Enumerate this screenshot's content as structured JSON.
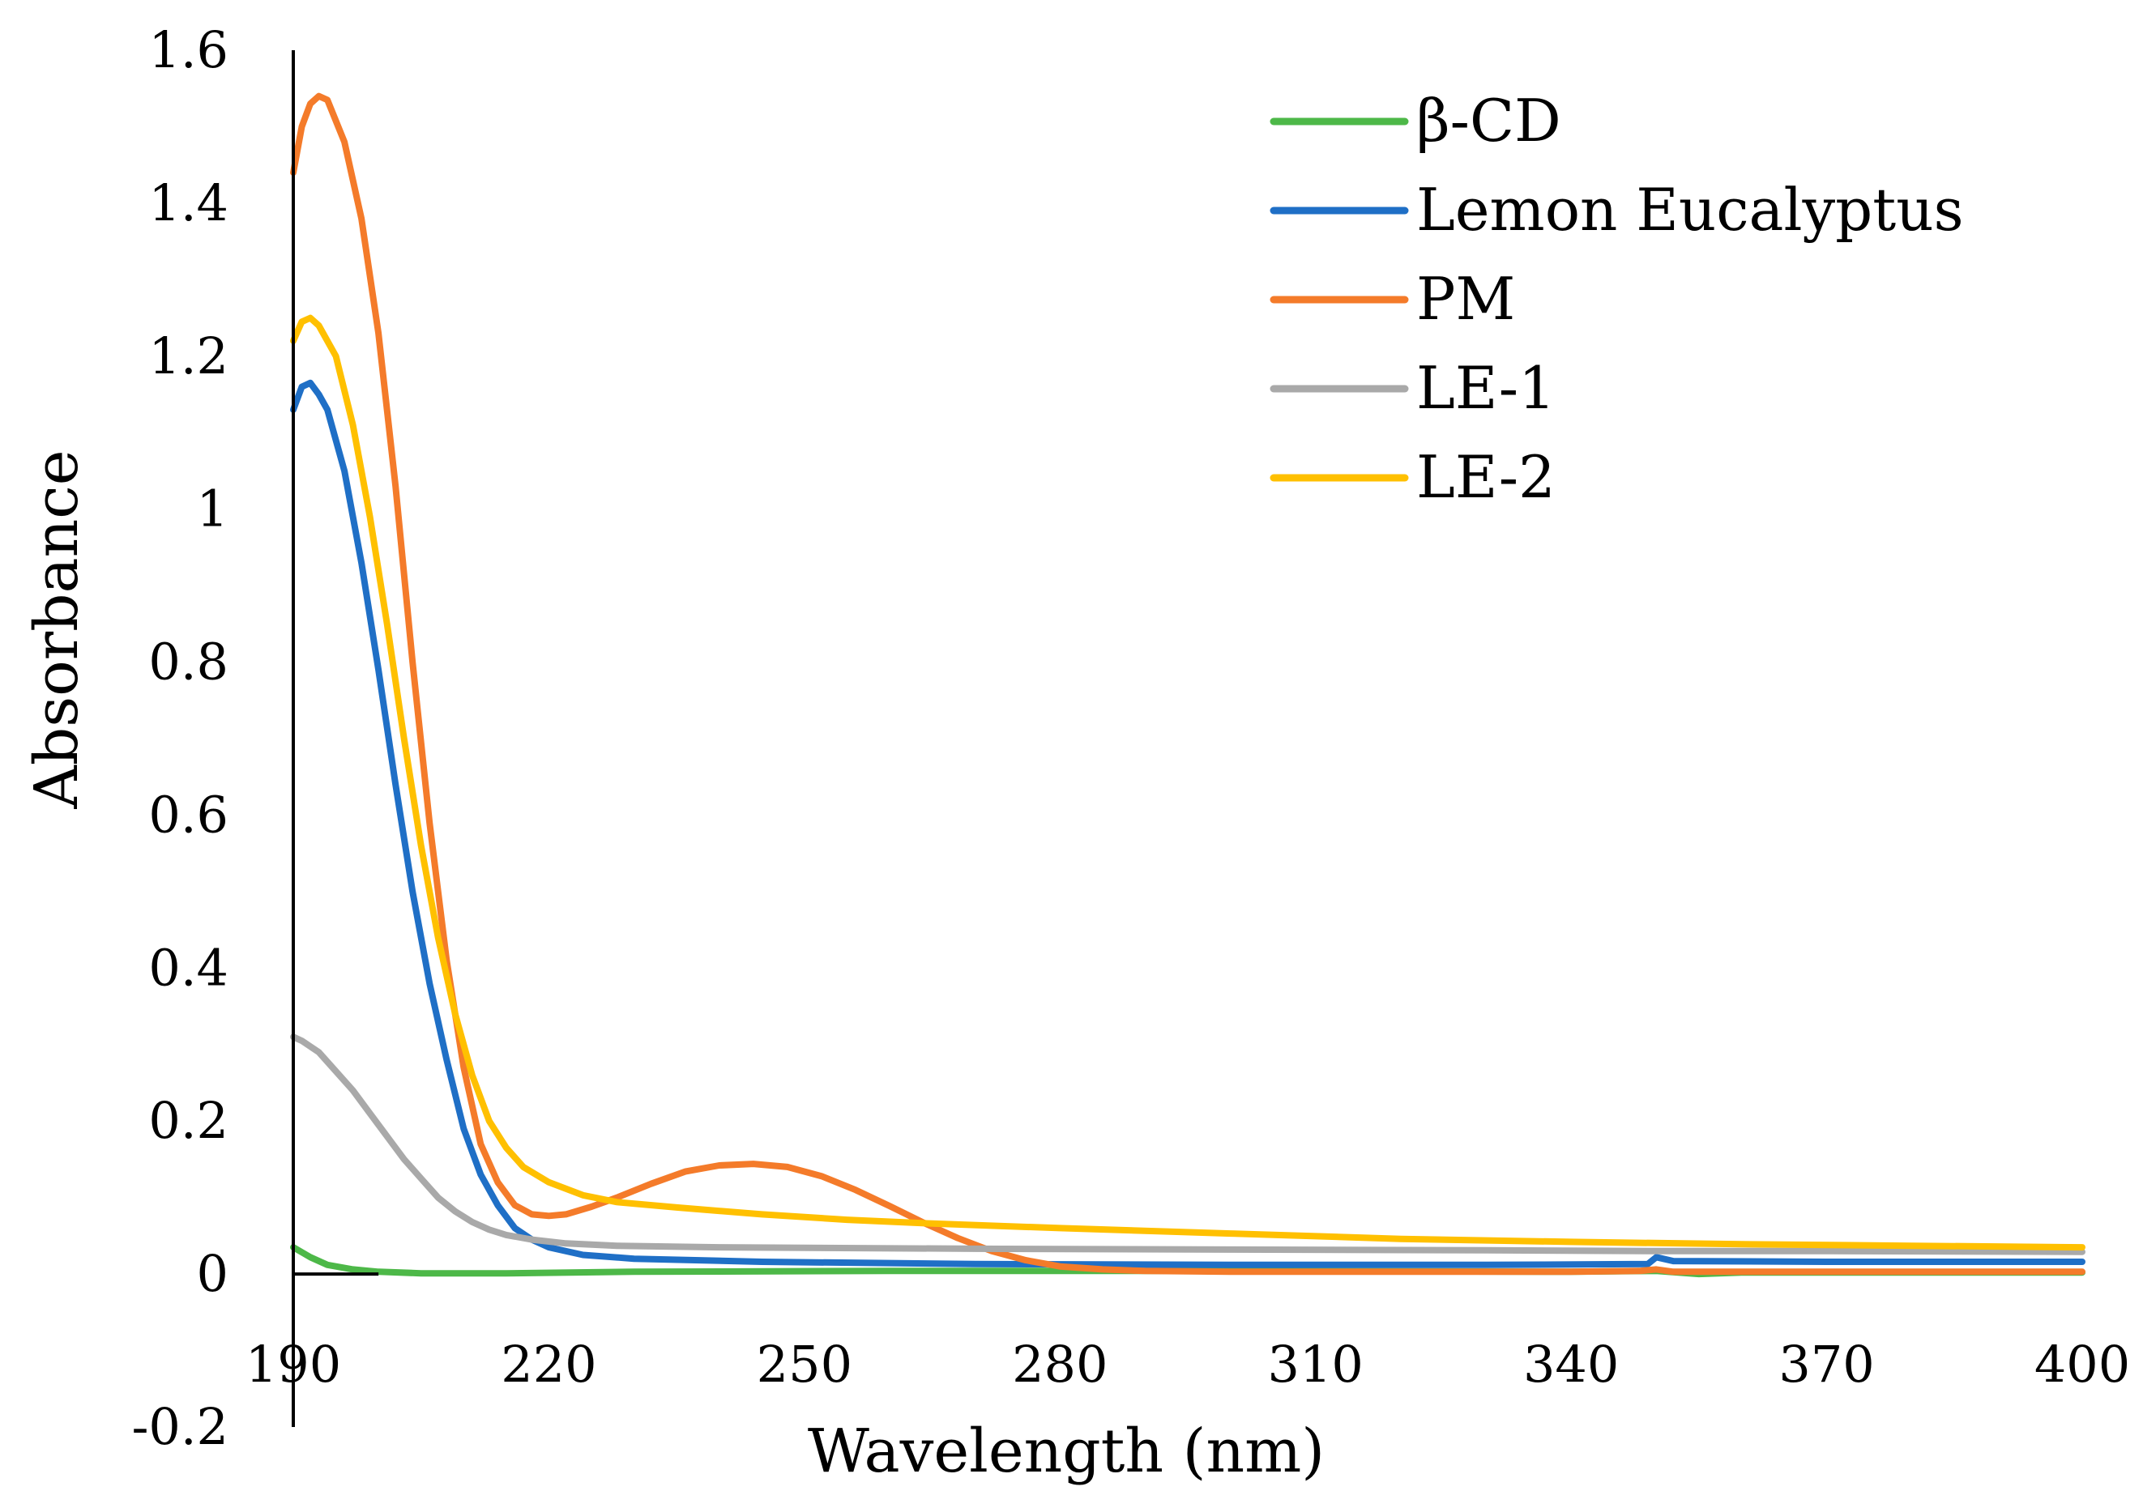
{
  "chart_data": {
    "type": "line",
    "title": "",
    "xlabel": "Wavelength (nm)",
    "ylabel": "Absorbance",
    "xlim": [
      190,
      400
    ],
    "ylim": [
      -0.2,
      1.6
    ],
    "x_ticks": [
      190,
      220,
      250,
      280,
      310,
      340,
      370,
      400
    ],
    "x_tick_labels": [
      "190",
      "220",
      "250",
      "280",
      "310",
      "340",
      "370",
      "400"
    ],
    "y_ticks": [
      -0.2,
      0,
      0.2,
      0.4,
      0.6,
      0.8,
      1,
      1.2,
      1.4,
      1.6
    ],
    "y_tick_labels": [
      "-0.2",
      "0",
      "0.2",
      "0.4",
      "0.6",
      "0.8",
      "1",
      "1.2",
      "1.4",
      "1.6"
    ],
    "grid": false,
    "legend_position": "top-right",
    "series": [
      {
        "name": "β-CD",
        "color": "#4db848",
        "points": [
          [
            190,
            0.035
          ],
          [
            192,
            0.022
          ],
          [
            194,
            0.012
          ],
          [
            197,
            0.006
          ],
          [
            200,
            0.003
          ],
          [
            205,
            0.001
          ],
          [
            215,
            0.001
          ],
          [
            230,
            0.003
          ],
          [
            260,
            0.004
          ],
          [
            300,
            0.004
          ],
          [
            340,
            0.003
          ],
          [
            350,
            0.004
          ],
          [
            355,
            0.0
          ],
          [
            360,
            0.002
          ],
          [
            380,
            0.002
          ],
          [
            400,
            0.002
          ]
        ]
      },
      {
        "name": "Lemon Eucalyptus",
        "color": "#1f6fc6",
        "points": [
          [
            190,
            1.13
          ],
          [
            191,
            1.16
          ],
          [
            192,
            1.165
          ],
          [
            193,
            1.15
          ],
          [
            194,
            1.13
          ],
          [
            196,
            1.05
          ],
          [
            198,
            0.93
          ],
          [
            200,
            0.79
          ],
          [
            202,
            0.64
          ],
          [
            204,
            0.5
          ],
          [
            206,
            0.38
          ],
          [
            208,
            0.28
          ],
          [
            210,
            0.19
          ],
          [
            212,
            0.13
          ],
          [
            214,
            0.09
          ],
          [
            216,
            0.06
          ],
          [
            218,
            0.045
          ],
          [
            220,
            0.035
          ],
          [
            224,
            0.025
          ],
          [
            230,
            0.02
          ],
          [
            245,
            0.016
          ],
          [
            270,
            0.013
          ],
          [
            300,
            0.012
          ],
          [
            330,
            0.012
          ],
          [
            349,
            0.013
          ],
          [
            350,
            0.022
          ],
          [
            352,
            0.017
          ],
          [
            370,
            0.016
          ],
          [
            400,
            0.016
          ]
        ]
      },
      {
        "name": "PM",
        "color": "#f47b2a",
        "points": [
          [
            190,
            1.44
          ],
          [
            191,
            1.5
          ],
          [
            192,
            1.53
          ],
          [
            193,
            1.54
          ],
          [
            194,
            1.535
          ],
          [
            196,
            1.48
          ],
          [
            198,
            1.38
          ],
          [
            200,
            1.23
          ],
          [
            202,
            1.03
          ],
          [
            204,
            0.8
          ],
          [
            206,
            0.59
          ],
          [
            208,
            0.41
          ],
          [
            210,
            0.27
          ],
          [
            212,
            0.17
          ],
          [
            214,
            0.12
          ],
          [
            216,
            0.09
          ],
          [
            218,
            0.078
          ],
          [
            220,
            0.076
          ],
          [
            222,
            0.078
          ],
          [
            225,
            0.088
          ],
          [
            228,
            0.1
          ],
          [
            232,
            0.118
          ],
          [
            236,
            0.134
          ],
          [
            240,
            0.142
          ],
          [
            244,
            0.144
          ],
          [
            248,
            0.14
          ],
          [
            252,
            0.128
          ],
          [
            256,
            0.11
          ],
          [
            260,
            0.089
          ],
          [
            264,
            0.067
          ],
          [
            268,
            0.047
          ],
          [
            272,
            0.03
          ],
          [
            276,
            0.018
          ],
          [
            280,
            0.01
          ],
          [
            285,
            0.006
          ],
          [
            290,
            0.004
          ],
          [
            300,
            0.003
          ],
          [
            320,
            0.003
          ],
          [
            340,
            0.003
          ],
          [
            348,
            0.004
          ],
          [
            350,
            0.006
          ],
          [
            352,
            0.003
          ],
          [
            380,
            0.003
          ],
          [
            400,
            0.003
          ]
        ]
      },
      {
        "name": "LE-1",
        "color": "#a9a9a9",
        "points": [
          [
            190,
            0.31
          ],
          [
            191,
            0.305
          ],
          [
            193,
            0.29
          ],
          [
            195,
            0.265
          ],
          [
            197,
            0.24
          ],
          [
            199,
            0.21
          ],
          [
            201,
            0.18
          ],
          [
            203,
            0.15
          ],
          [
            205,
            0.125
          ],
          [
            207,
            0.1
          ],
          [
            209,
            0.082
          ],
          [
            211,
            0.068
          ],
          [
            213,
            0.058
          ],
          [
            215,
            0.051
          ],
          [
            218,
            0.045
          ],
          [
            222,
            0.04
          ],
          [
            228,
            0.037
          ],
          [
            240,
            0.035
          ],
          [
            270,
            0.033
          ],
          [
            300,
            0.032
          ],
          [
            330,
            0.031
          ],
          [
            350,
            0.03
          ],
          [
            370,
            0.03
          ],
          [
            400,
            0.029
          ]
        ]
      },
      {
        "name": "LE-2",
        "color": "#ffc000",
        "points": [
          [
            190,
            1.22
          ],
          [
            191,
            1.245
          ],
          [
            192,
            1.25
          ],
          [
            193,
            1.24
          ],
          [
            195,
            1.2
          ],
          [
            197,
            1.11
          ],
          [
            199,
            0.99
          ],
          [
            201,
            0.85
          ],
          [
            203,
            0.7
          ],
          [
            205,
            0.56
          ],
          [
            207,
            0.44
          ],
          [
            209,
            0.34
          ],
          [
            211,
            0.26
          ],
          [
            213,
            0.2
          ],
          [
            215,
            0.165
          ],
          [
            217,
            0.14
          ],
          [
            220,
            0.12
          ],
          [
            224,
            0.103
          ],
          [
            228,
            0.094
          ],
          [
            235,
            0.087
          ],
          [
            245,
            0.078
          ],
          [
            255,
            0.071
          ],
          [
            265,
            0.066
          ],
          [
            280,
            0.06
          ],
          [
            300,
            0.053
          ],
          [
            320,
            0.046
          ],
          [
            340,
            0.042
          ],
          [
            360,
            0.039
          ],
          [
            380,
            0.037
          ],
          [
            400,
            0.035
          ]
        ]
      }
    ]
  }
}
